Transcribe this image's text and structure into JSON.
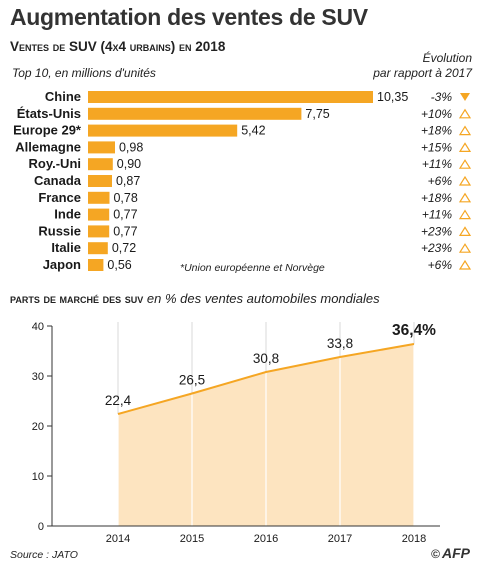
{
  "title": "Augmentation des ventes de SUV",
  "bar_section": {
    "subtitle": "Ventes de SUV (4x4 urbains) en 2018",
    "note": "Top 10, en millions d'unités",
    "evolution_header": [
      "Évolution",
      "par rapport à 2017"
    ],
    "footnote": "*Union européenne et Norvège"
  },
  "line_section": {
    "heading_bold": "Parts de marché des SUV",
    "heading_italic": "en % des ventes automobiles mondiales"
  },
  "source": "Source : JATO",
  "logo": "AFP",
  "colors": {
    "bar": "#f5a623",
    "area": "#fde4c0",
    "line": "#f5a623",
    "text": "#1a1a1a",
    "up_marker": "#f5a623",
    "down_marker": "#f5a623"
  },
  "chart_data": [
    {
      "type": "bar",
      "orientation": "horizontal",
      "categories": [
        "Chine",
        "États-Unis",
        "Europe 29*",
        "Allemagne",
        "Roy.-Uni",
        "Canada",
        "France",
        "Inde",
        "Russie",
        "Italie",
        "Japon"
      ],
      "values": [
        10.35,
        7.75,
        5.42,
        0.98,
        0.9,
        0.87,
        0.78,
        0.77,
        0.77,
        0.72,
        0.56
      ],
      "value_labels": [
        "10,35",
        "7,75",
        "5,42",
        "0,98",
        "0,90",
        "0,87",
        "0,78",
        "0,77",
        "0,77",
        "0,72",
        "0,56"
      ],
      "evolution": [
        "-3%",
        "+10%",
        "+18%",
        "+15%",
        "+11%",
        "+6%",
        "+18%",
        "+11%",
        "+23%",
        "+23%",
        "+6%"
      ],
      "evolution_direction": [
        "down",
        "up",
        "up",
        "up",
        "up",
        "up",
        "up",
        "up",
        "up",
        "up",
        "up"
      ],
      "title": "Ventes de SUV (4x4 urbains) en 2018",
      "unit": "millions d'unités"
    },
    {
      "type": "area",
      "x": [
        "2014",
        "2015",
        "2016",
        "2017",
        "2018"
      ],
      "values": [
        22.4,
        26.5,
        30.8,
        33.8,
        36.4
      ],
      "value_labels": [
        "22,4",
        "26,5",
        "30,8",
        "33,8",
        "36,4%"
      ],
      "ylim": [
        0,
        40
      ],
      "yticks": [
        0,
        10,
        20,
        30,
        40
      ],
      "grid": "vertical",
      "title": "Parts de marché des SUV"
    }
  ]
}
